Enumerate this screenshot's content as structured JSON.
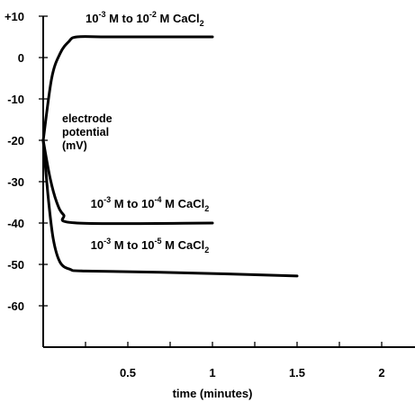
{
  "chart_data": {
    "type": "line",
    "title": "",
    "xlabel": "time (minutes)",
    "ylabel": [
      "electrode",
      "potential",
      "(mV)"
    ],
    "xlim": [
      0,
      2.2
    ],
    "ylim": [
      -72,
      10
    ],
    "grid": false,
    "legend": "none",
    "y_ticks": [
      {
        "value": 10,
        "label": "+10"
      },
      {
        "value": 0,
        "label": "0"
      },
      {
        "value": -10,
        "label": "-10"
      },
      {
        "value": -20,
        "label": "-20"
      },
      {
        "value": -30,
        "label": "-30"
      },
      {
        "value": -40,
        "label": "-40"
      },
      {
        "value": -50,
        "label": "-50"
      },
      {
        "value": -60,
        "label": "-60"
      }
    ],
    "x_ticks": [
      {
        "value": 0.5,
        "label": "0.5"
      },
      {
        "value": 1,
        "label": "1"
      },
      {
        "value": 1.5,
        "label": "1.5"
      },
      {
        "value": 2,
        "label": "2"
      }
    ],
    "x_minor_ticks": [
      0.25,
      0.75,
      1.25,
      1.75
    ],
    "series": [
      {
        "label_parts": {
          "a": "10",
          "a_exp": "-3",
          "b": " M  to 10",
          "b_exp": "-2",
          "c": " M  CaCl",
          "c_sub": "2"
        },
        "label_anchor": {
          "x": 0.25,
          "y": 8.5
        },
        "points": [
          [
            0,
            -20
          ],
          [
            0.05,
            -5
          ],
          [
            0.1,
            1
          ],
          [
            0.15,
            3.8
          ],
          [
            0.2,
            5
          ],
          [
            0.4,
            5
          ],
          [
            1,
            5
          ]
        ]
      },
      {
        "label_parts": {
          "a": "10",
          "a_exp": "-3",
          "b": " M  to 10",
          "b_exp": "-4",
          "c": " M  CaCl",
          "c_sub": "2"
        },
        "label_anchor": {
          "x": 0.28,
          "y": -36.3
        },
        "points": [
          [
            0,
            -20
          ],
          [
            0.04,
            -29
          ],
          [
            0.08,
            -35
          ],
          [
            0.12,
            -38
          ],
          [
            0.2,
            -40
          ],
          [
            1,
            -40
          ]
        ]
      },
      {
        "label_parts": {
          "a": "10",
          "a_exp": "-3",
          "b": " M  to 10",
          "b_exp": "-5",
          "c": " M  CaCl",
          "c_sub": "2"
        },
        "label_anchor": {
          "x": 0.28,
          "y": -46.3
        },
        "points": [
          [
            0,
            -20
          ],
          [
            0.03,
            -34
          ],
          [
            0.06,
            -44
          ],
          [
            0.1,
            -49.5
          ],
          [
            0.16,
            -51.2
          ],
          [
            0.25,
            -51.6
          ],
          [
            0.8,
            -52
          ],
          [
            1.5,
            -52.8
          ]
        ]
      }
    ]
  }
}
